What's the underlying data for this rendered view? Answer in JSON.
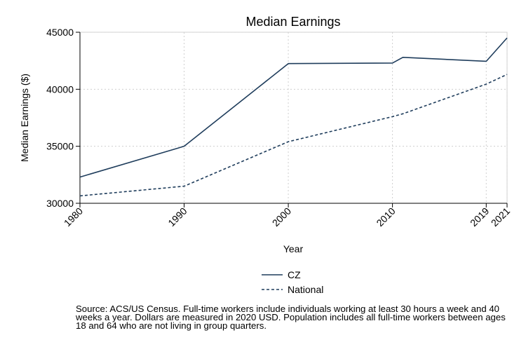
{
  "chart_data": {
    "type": "line",
    "title": "Median Earnings",
    "xlabel": "Year",
    "ylabel": "Median Earnings ($)",
    "x": [
      1980,
      1990,
      2000,
      2010,
      2011,
      2019,
      2021
    ],
    "xticks": [
      1980,
      1990,
      2000,
      2010,
      2019,
      2021
    ],
    "xtick_labels": [
      "1980",
      "1990",
      "2000",
      "2010",
      "2019",
      "2021"
    ],
    "yticks": [
      30000,
      35000,
      40000,
      45000
    ],
    "ytick_labels": [
      "30000",
      "35000",
      "40000",
      "45000"
    ],
    "xlim": [
      1980,
      2021
    ],
    "ylim": [
      30000,
      45000
    ],
    "grid": true,
    "legend_position": "bottom",
    "series": [
      {
        "name": "CZ",
        "style": "solid",
        "color": "#1f3d5c",
        "values": [
          32300,
          35000,
          42250,
          42300,
          42800,
          42450,
          44500
        ]
      },
      {
        "name": "National",
        "style": "dashed",
        "color": "#1f3d5c",
        "values": [
          30650,
          31500,
          35400,
          37600,
          37850,
          40450,
          41300
        ]
      }
    ]
  },
  "note": "Source: ACS/US Census. Full-time workers include individuals working at least 30 hours a week and 40 weeks a year. Dollars are measured in 2020 USD. Population includes all full-time workers between ages 18 and 64 who are not living in group quarters."
}
